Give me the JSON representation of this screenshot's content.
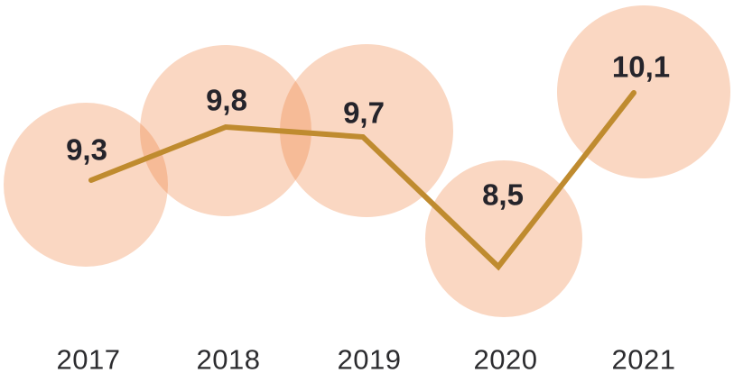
{
  "chart_data": {
    "type": "line",
    "categories": [
      "2017",
      "2018",
      "2019",
      "2020",
      "2021"
    ],
    "values": [
      9.3,
      9.8,
      9.7,
      8.5,
      10.1
    ],
    "value_labels": [
      "9,3",
      "9,8",
      "9,7",
      "8,5",
      "10,1"
    ],
    "decimal_separator": ",",
    "title": "",
    "xlabel": "",
    "ylabel": "",
    "ylim": [
      8.0,
      10.5
    ],
    "grid": false,
    "axes_hidden": true,
    "legend": "none",
    "marker_style": "large-translucent-bubbles",
    "colors": {
      "line": "#BF8B2F",
      "bubble_fill": "#EE7934",
      "bubble_opacity": 0.3,
      "value_text": "#25242B",
      "category_text": "#2C2C2F",
      "background": "#FFFFFF"
    }
  }
}
